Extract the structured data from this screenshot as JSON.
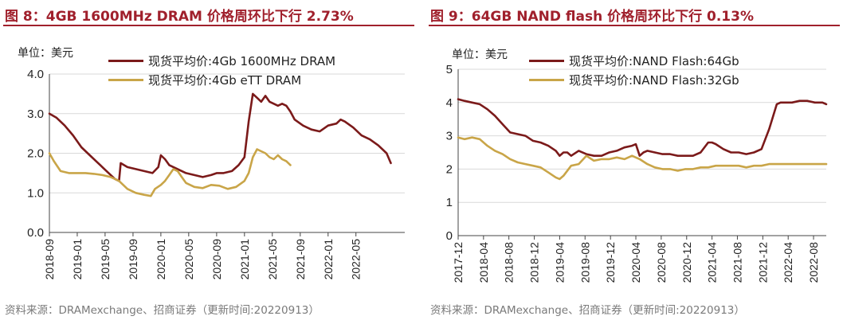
{
  "figures": [
    {
      "title": "图 8：4GB 1600MHz DRAM 价格周环比下行 2.73%",
      "unit_label": "单位：美元",
      "source": "资料来源：DRAMexchange、招商证券（更新时间:20220913）"
    },
    {
      "title": "图 9：64GB NAND flash 价格周环比下行 0.13%",
      "unit_label": "单位：美元",
      "source": "资料来源：DRAMexchange、招商证券（更新时间:20220913）"
    }
  ],
  "colors": {
    "dark_red": "#7b1a1a",
    "gold": "#c9a548",
    "title_red": "#a0202c"
  },
  "chart_data": [
    {
      "type": "line",
      "title": "图 8：4GB 1600MHz DRAM 价格周环比下行 2.73%",
      "ylabel": "单位：美元",
      "ylim": [
        0.0,
        4.0
      ],
      "yticks": [
        "0.0",
        "1.0",
        "2.0",
        "3.0",
        "4.0"
      ],
      "ytick_values": [
        0,
        1,
        2,
        3,
        4
      ],
      "xlim": [
        2018.667,
        2022.917
      ],
      "xticks": [
        "2018-09",
        "2019-01",
        "2019-05",
        "2019-09",
        "2020-01",
        "2020-05",
        "2020-09",
        "2021-01",
        "2021-05",
        "2021-09",
        "2022-01",
        "2022-05"
      ],
      "xtick_values": [
        2018.667,
        2019.0,
        2019.333,
        2019.667,
        2020.0,
        2020.333,
        2020.667,
        2021.0,
        2021.333,
        2021.667,
        2022.0,
        2022.333
      ],
      "series": [
        {
          "name": "现货平均价:4Gb 1600MHz DRAM",
          "color": "#7b1a1a",
          "x": [
            2018.667,
            2018.75,
            2018.85,
            2018.95,
            2019.05,
            2019.15,
            2019.25,
            2019.35,
            2019.45,
            2019.5,
            2019.52,
            2019.6,
            2019.7,
            2019.8,
            2019.9,
            2019.97,
            2020.0,
            2020.05,
            2020.1,
            2020.2,
            2020.3,
            2020.4,
            2020.5,
            2020.6,
            2020.67,
            2020.75,
            2020.85,
            2020.93,
            2021.0,
            2021.05,
            2021.1,
            2021.15,
            2021.2,
            2021.25,
            2021.3,
            2021.35,
            2021.4,
            2021.45,
            2021.5,
            2021.55,
            2021.6,
            2021.7,
            2021.8,
            2021.9,
            2022.0,
            2022.1,
            2022.15,
            2022.2,
            2022.3,
            2022.4,
            2022.5,
            2022.6,
            2022.7,
            2022.75
          ],
          "values": [
            3.0,
            2.9,
            2.7,
            2.45,
            2.15,
            1.95,
            1.75,
            1.55,
            1.35,
            1.3,
            1.75,
            1.65,
            1.6,
            1.55,
            1.5,
            1.65,
            1.95,
            1.85,
            1.7,
            1.6,
            1.5,
            1.45,
            1.4,
            1.45,
            1.5,
            1.5,
            1.55,
            1.7,
            1.9,
            2.8,
            3.5,
            3.4,
            3.3,
            3.45,
            3.3,
            3.25,
            3.2,
            3.25,
            3.2,
            3.05,
            2.85,
            2.7,
            2.6,
            2.55,
            2.7,
            2.75,
            2.85,
            2.8,
            2.65,
            2.45,
            2.35,
            2.2,
            2.0,
            1.75
          ]
        },
        {
          "name": "现货平均价:4Gb eTT DRAM",
          "color": "#c9a548",
          "x": [
            2018.667,
            2018.72,
            2018.8,
            2018.9,
            2019.0,
            2019.1,
            2019.2,
            2019.3,
            2019.4,
            2019.45,
            2019.5,
            2019.6,
            2019.7,
            2019.8,
            2019.88,
            2019.93,
            2020.0,
            2020.05,
            2020.1,
            2020.15,
            2020.2,
            2020.25,
            2020.3,
            2020.4,
            2020.5,
            2020.6,
            2020.7,
            2020.8,
            2020.9,
            2021.0,
            2021.05,
            2021.1,
            2021.15,
            2021.2,
            2021.25,
            2021.3,
            2021.35,
            2021.4,
            2021.45,
            2021.5,
            2021.55
          ],
          "values": [
            2.0,
            1.8,
            1.55,
            1.5,
            1.5,
            1.5,
            1.48,
            1.45,
            1.4,
            1.35,
            1.3,
            1.1,
            1.0,
            0.95,
            0.92,
            1.1,
            1.2,
            1.3,
            1.45,
            1.6,
            1.55,
            1.4,
            1.25,
            1.15,
            1.12,
            1.2,
            1.18,
            1.1,
            1.15,
            1.3,
            1.5,
            1.9,
            2.1,
            2.05,
            2.0,
            1.9,
            1.85,
            1.95,
            1.85,
            1.8,
            1.7
          ]
        }
      ]
    },
    {
      "type": "line",
      "title": "图 9：64GB NAND flash 价格周环比下行 0.13%",
      "ylabel": "单位：美元",
      "ylim": [
        0,
        5
      ],
      "yticks": [
        "0",
        "1",
        "2",
        "3",
        "4",
        "5"
      ],
      "ytick_values": [
        0,
        1,
        2,
        3,
        4,
        5
      ],
      "xlim": [
        2017.917,
        2022.75
      ],
      "xticks": [
        "2017-12",
        "2018-04",
        "2018-08",
        "2018-12",
        "2019-04",
        "2019-08",
        "2019-12",
        "2020-04",
        "2020-08",
        "2020-12",
        "2021-04",
        "2021-08",
        "2021-12",
        "2022-04",
        "2022-08"
      ],
      "xtick_values": [
        2017.917,
        2018.25,
        2018.583,
        2018.917,
        2019.25,
        2019.583,
        2019.917,
        2020.25,
        2020.583,
        2020.917,
        2021.25,
        2021.583,
        2021.917,
        2022.25,
        2022.583
      ],
      "series": [
        {
          "name": "现货平均价:NAND Flash:64Gb",
          "color": "#7b1a1a",
          "x": [
            2017.917,
            2018.0,
            2018.1,
            2018.2,
            2018.3,
            2018.4,
            2018.5,
            2018.6,
            2018.7,
            2018.8,
            2018.9,
            2019.0,
            2019.1,
            2019.2,
            2019.25,
            2019.3,
            2019.35,
            2019.4,
            2019.5,
            2019.6,
            2019.7,
            2019.8,
            2019.9,
            2020.0,
            2020.1,
            2020.2,
            2020.25,
            2020.3,
            2020.35,
            2020.4,
            2020.5,
            2020.6,
            2020.7,
            2020.8,
            2020.9,
            2021.0,
            2021.1,
            2021.2,
            2021.25,
            2021.3,
            2021.4,
            2021.5,
            2021.6,
            2021.7,
            2021.8,
            2021.9,
            2022.0,
            2022.1,
            2022.15,
            2022.2,
            2022.3,
            2022.4,
            2022.5,
            2022.6,
            2022.7,
            2022.75
          ],
          "values": [
            4.1,
            4.05,
            4.0,
            3.95,
            3.8,
            3.6,
            3.35,
            3.1,
            3.05,
            3.0,
            2.85,
            2.8,
            2.7,
            2.55,
            2.4,
            2.5,
            2.5,
            2.4,
            2.55,
            2.45,
            2.4,
            2.4,
            2.5,
            2.55,
            2.65,
            2.7,
            2.75,
            2.4,
            2.5,
            2.55,
            2.5,
            2.45,
            2.45,
            2.4,
            2.4,
            2.4,
            2.5,
            2.8,
            2.8,
            2.75,
            2.6,
            2.5,
            2.5,
            2.45,
            2.5,
            2.6,
            3.2,
            3.95,
            4.0,
            4.0,
            4.0,
            4.05,
            4.05,
            4.0,
            4.0,
            3.95
          ]
        },
        {
          "name": "现货平均价:NAND Flash:32Gb",
          "color": "#c9a548",
          "x": [
            2017.917,
            2018.0,
            2018.1,
            2018.2,
            2018.3,
            2018.4,
            2018.5,
            2018.6,
            2018.7,
            2018.8,
            2018.9,
            2019.0,
            2019.1,
            2019.2,
            2019.25,
            2019.3,
            2019.4,
            2019.5,
            2019.6,
            2019.7,
            2019.8,
            2019.9,
            2020.0,
            2020.1,
            2020.2,
            2020.3,
            2020.4,
            2020.5,
            2020.6,
            2020.7,
            2020.8,
            2020.9,
            2021.0,
            2021.1,
            2021.2,
            2021.3,
            2021.4,
            2021.5,
            2021.6,
            2021.7,
            2021.8,
            2021.9,
            2022.0,
            2022.2,
            2022.4,
            2022.6,
            2022.75
          ],
          "values": [
            2.95,
            2.9,
            2.95,
            2.9,
            2.7,
            2.55,
            2.45,
            2.3,
            2.2,
            2.15,
            2.1,
            2.05,
            1.9,
            1.75,
            1.7,
            1.8,
            2.1,
            2.15,
            2.4,
            2.25,
            2.3,
            2.3,
            2.35,
            2.3,
            2.4,
            2.3,
            2.15,
            2.05,
            2.0,
            2.0,
            1.95,
            2.0,
            2.0,
            2.05,
            2.05,
            2.1,
            2.1,
            2.1,
            2.1,
            2.05,
            2.1,
            2.1,
            2.15,
            2.15,
            2.15,
            2.15,
            2.15
          ]
        }
      ]
    }
  ]
}
